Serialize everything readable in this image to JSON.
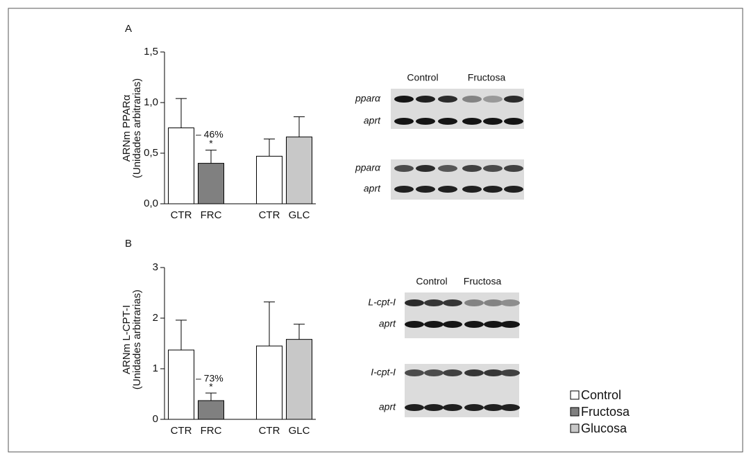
{
  "chart_data": [
    {
      "type": "bar",
      "panel": "A",
      "ylabel": [
        "ARNm PPARα",
        "(Unidades arbitrarias)"
      ],
      "categories": [
        "CTR",
        "FRC",
        "CTR",
        "GLC"
      ],
      "values": [
        0.75,
        0.4,
        0.47,
        0.66
      ],
      "errors": [
        0.29,
        0.13,
        0.17,
        0.2
      ],
      "colors": [
        "#ffffff",
        "#808080",
        "#ffffff",
        "#c8c8c8"
      ],
      "ylim": [
        0,
        1.5
      ],
      "yticks": [
        {
          "value": 0,
          "label": "0,0"
        },
        {
          "value": 0.5,
          "label": "0,5"
        },
        {
          "value": 1,
          "label": "1,0"
        },
        {
          "value": 1.5,
          "label": "1,5"
        }
      ],
      "annotations": [
        "– 46%",
        "*"
      ]
    },
    {
      "type": "bar",
      "panel": "B",
      "ylabel": [
        "ARNm L-CPT-I",
        "(Unidades arbitrarias)"
      ],
      "categories": [
        "CTR",
        "FRC",
        "CTR",
        "GLC"
      ],
      "values": [
        1.37,
        0.37,
        1.45,
        1.58
      ],
      "errors": [
        0.59,
        0.15,
        0.87,
        0.3
      ],
      "colors": [
        "#ffffff",
        "#808080",
        "#ffffff",
        "#c8c8c8"
      ],
      "ylim": [
        0,
        3
      ],
      "yticks": [
        0,
        1,
        2,
        3
      ],
      "annotations": [
        "– 73%",
        "*"
      ]
    }
  ],
  "legend": [
    {
      "name": "Control",
      "color": "#ffffff"
    },
    {
      "name": "Fructosa",
      "color": "#808080"
    },
    {
      "name": "Glucosa",
      "color": "#c8c8c8"
    }
  ],
  "blots": [
    {
      "headers": [
        "Control",
        "Fructosa"
      ],
      "panels": [
        {
          "rows": [
            "pparα",
            "aprt"
          ]
        },
        {
          "rows": [
            "pparα",
            "aprt"
          ]
        }
      ]
    },
    {
      "headers": [
        "Control",
        "Fructosa"
      ],
      "panels": [
        {
          "rows": [
            "L-cpt-I",
            "aprt"
          ]
        },
        {
          "rows": [
            "I-cpt-I",
            "aprt"
          ]
        }
      ]
    }
  ]
}
